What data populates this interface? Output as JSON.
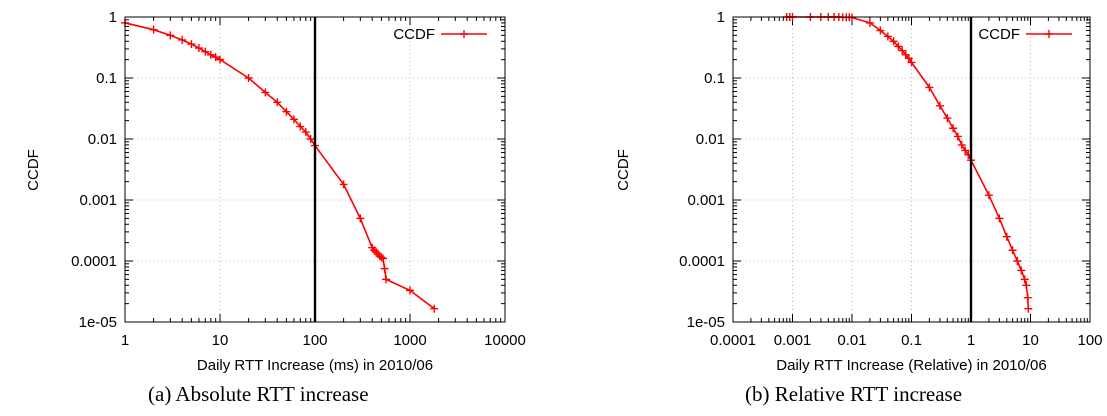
{
  "figure": {
    "caption_a": "(a) Absolute RTT increase",
    "caption_b": "(b) Relative RTT increase"
  },
  "chart_data": [
    {
      "type": "line",
      "xscale": "log",
      "yscale": "log",
      "xlabel": "Daily RTT Increase (ms) in 2010/06",
      "ylabel": "CCDF",
      "xlim": [
        1,
        10000
      ],
      "ylim": [
        1e-05,
        1
      ],
      "x_ticks": [
        1,
        10,
        100,
        1000,
        10000
      ],
      "x_tick_labels": [
        "1",
        "10",
        "100",
        "1000",
        "10000"
      ],
      "y_ticks": [
        1e-05,
        0.0001,
        0.001,
        0.01,
        0.1,
        1
      ],
      "y_tick_labels": [
        "1e-05",
        "0.0001",
        "0.001",
        "0.01",
        "0.1",
        "1"
      ],
      "grid": true,
      "legend": "top-right",
      "vline": 100,
      "series": [
        {
          "name": "CCDF",
          "color": "#ff0000",
          "marker": "plus",
          "x": [
            1,
            2,
            3,
            4,
            5,
            6,
            7,
            8,
            9,
            10,
            20,
            30,
            40,
            50,
            60,
            70,
            80,
            90,
            100,
            200,
            300,
            400,
            420,
            440,
            460,
            480,
            500,
            520,
            540,
            560,
            1000,
            1800
          ],
          "y": [
            0.8,
            0.62,
            0.5,
            0.42,
            0.36,
            0.31,
            0.27,
            0.24,
            0.22,
            0.2,
            0.1,
            0.058,
            0.04,
            0.028,
            0.021,
            0.016,
            0.013,
            0.01,
            0.0078,
            0.0018,
            0.0005,
            0.000165,
            0.00015,
            0.00014,
            0.00013,
            0.00012,
            0.000115,
            0.00011,
            7.5e-05,
            5e-05,
            3.3e-05,
            1.65e-05
          ]
        }
      ]
    },
    {
      "type": "line",
      "xscale": "log",
      "yscale": "log",
      "xlabel": "Daily RTT Increase (Relative) in 2010/06",
      "ylabel": "CCDF",
      "xlim": [
        0.0001,
        100
      ],
      "ylim": [
        1e-05,
        1
      ],
      "x_ticks": [
        0.0001,
        0.001,
        0.01,
        0.1,
        1,
        10,
        100
      ],
      "x_tick_labels": [
        "0.0001",
        "0.001",
        "0.01",
        "0.1",
        "1",
        "10",
        "100"
      ],
      "y_ticks": [
        1e-05,
        0.0001,
        0.001,
        0.01,
        0.1,
        1
      ],
      "y_tick_labels": [
        "1e-05",
        "0.0001",
        "0.001",
        "0.01",
        "0.1",
        "1"
      ],
      "grid": true,
      "legend": "top-right",
      "vline": 1,
      "series": [
        {
          "name": "CCDF",
          "color": "#ff0000",
          "marker": "plus",
          "x": [
            0.0008,
            0.0009,
            0.001,
            0.002,
            0.003,
            0.004,
            0.005,
            0.006,
            0.007,
            0.008,
            0.009,
            0.01,
            0.02,
            0.03,
            0.04,
            0.05,
            0.06,
            0.07,
            0.08,
            0.09,
            0.1,
            0.2,
            0.3,
            0.4,
            0.5,
            0.6,
            0.7,
            0.8,
            0.9,
            1,
            2,
            3,
            4,
            5,
            6,
            7,
            8,
            8.5,
            9,
            9.2
          ],
          "y": [
            1,
            1,
            1,
            1,
            1,
            1,
            1,
            1,
            0.99,
            0.99,
            0.99,
            0.98,
            0.8,
            0.6,
            0.48,
            0.4,
            0.33,
            0.28,
            0.24,
            0.21,
            0.18,
            0.07,
            0.035,
            0.022,
            0.015,
            0.011,
            0.008,
            0.0065,
            0.0055,
            0.0045,
            0.0012,
            0.0005,
            0.00025,
            0.00015,
            0.0001,
            7e-05,
            5e-05,
            4e-05,
            2.5e-05,
            1.65e-05
          ]
        }
      ]
    }
  ]
}
